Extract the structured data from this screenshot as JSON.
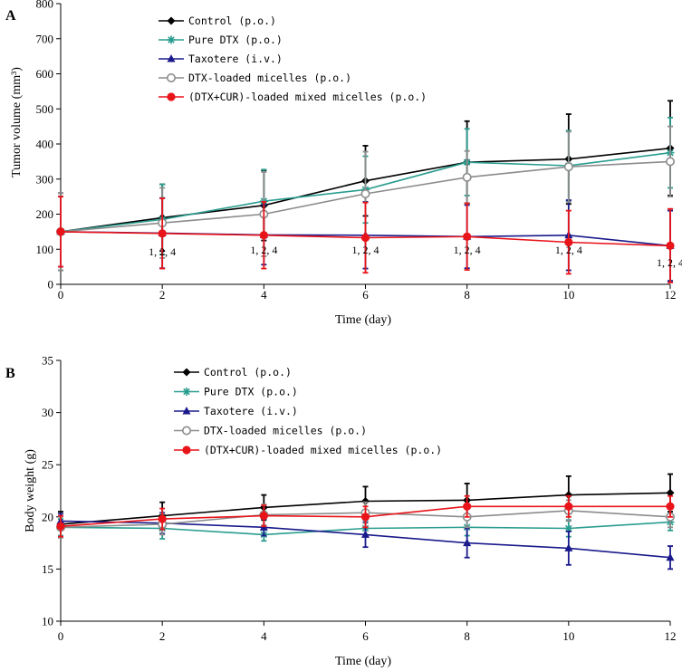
{
  "chart_data": [
    {
      "type": "line",
      "panel_label": "A",
      "xlabel": "Time (day)",
      "ylabel": "Tumor volume (mm³)",
      "xlim": [
        0,
        12
      ],
      "ylim": [
        0,
        800
      ],
      "xticks": [
        0,
        2,
        4,
        6,
        8,
        10,
        12
      ],
      "yticks": [
        0,
        100,
        200,
        300,
        400,
        500,
        600,
        700,
        800
      ],
      "legend_position": "top-center",
      "x": [
        0,
        2,
        4,
        6,
        8,
        10,
        12
      ],
      "series": [
        {
          "name": "Control (p.o.)",
          "color": "#000000",
          "marker": "diamond",
          "values": [
            150,
            190,
            225,
            295,
            348,
            357,
            388
          ],
          "errors": [
            110,
            95,
            100,
            100,
            117,
            128,
            135
          ]
        },
        {
          "name": "Pure DTX (p.o.)",
          "color": "#2a9d8f",
          "marker": "asterisk",
          "values": [
            150,
            185,
            237,
            270,
            348,
            338,
            375
          ],
          "errors": [
            100,
            100,
            90,
            95,
            95,
            100,
            100
          ]
        },
        {
          "name": "Taxotere (i.v.)",
          "color": "#1a1a8c",
          "marker": "triangle",
          "values": [
            150,
            146,
            141,
            140,
            136,
            140,
            110
          ],
          "errors": [
            100,
            100,
            85,
            95,
            90,
            100,
            100
          ]
        },
        {
          "name": "DTX-loaded micelles (p.o.)",
          "color": "#8c8c8c",
          "marker": "open-circle",
          "values": [
            150,
            175,
            200,
            258,
            305,
            335,
            350
          ],
          "errors": [
            110,
            100,
            120,
            120,
            75,
            100,
            100
          ]
        },
        {
          "name": "(DTX+CUR)-loaded mixed micelles (p.o.)",
          "color": "#e8141a",
          "marker": "filled-circle",
          "values": [
            150,
            145,
            140,
            133,
            136,
            120,
            110
          ],
          "errors": [
            100,
            100,
            95,
            100,
            95,
            90,
            105
          ]
        }
      ],
      "annotations": [
        {
          "x": 2,
          "y": 83,
          "text": "1, 2, 4"
        },
        {
          "x": 4,
          "y": 88,
          "text": "1, 2, 4"
        },
        {
          "x": 6,
          "y": 88,
          "text": "1, 2, 4"
        },
        {
          "x": 8,
          "y": 88,
          "text": "1, 2, 4"
        },
        {
          "x": 10,
          "y": 88,
          "text": "1, 2, 4"
        },
        {
          "x": 12,
          "y": 52,
          "text": "1, 2, 4"
        }
      ]
    },
    {
      "type": "line",
      "panel_label": "B",
      "xlabel": "Time  (day)",
      "ylabel": "Body weight (g)",
      "xlim": [
        0,
        12
      ],
      "ylim": [
        10,
        35
      ],
      "xticks": [
        0,
        2,
        4,
        6,
        8,
        10,
        12
      ],
      "yticks": [
        10,
        15,
        20,
        25,
        30,
        35
      ],
      "legend_position": "top-center",
      "x": [
        0,
        2,
        4,
        6,
        8,
        10,
        12
      ],
      "series": [
        {
          "name": "Control (p.o.)",
          "color": "#000000",
          "marker": "diamond",
          "values": [
            19.3,
            20.1,
            20.9,
            21.5,
            21.6,
            22.1,
            22.3
          ],
          "errors": [
            1.2,
            1.3,
            1.2,
            1.4,
            1.6,
            1.8,
            1.8
          ]
        },
        {
          "name": "Pure DTX (p.o.)",
          "color": "#2a9d8f",
          "marker": "asterisk",
          "values": [
            19.0,
            18.9,
            18.3,
            18.9,
            19.0,
            18.9,
            19.5
          ],
          "errors": [
            0.8,
            1.0,
            0.6,
            0.8,
            0.8,
            0.8,
            0.8
          ]
        },
        {
          "name": "Taxotere (i.v.)",
          "color": "#1a1a8c",
          "marker": "triangle",
          "values": [
            19.6,
            19.4,
            19.0,
            18.3,
            17.5,
            17.0,
            16.1
          ],
          "errors": [
            0.7,
            1.0,
            0.8,
            1.2,
            1.4,
            1.6,
            1.1
          ]
        },
        {
          "name": "DTX-loaded micelles (p.o.)",
          "color": "#8c8c8c",
          "marker": "open-circle",
          "values": [
            19.0,
            19.3,
            20.2,
            20.4,
            20.0,
            20.6,
            20.0
          ],
          "errors": [
            1.0,
            1.0,
            1.0,
            1.0,
            1.0,
            1.0,
            1.0
          ]
        },
        {
          "name": "(DTX+CUR)-loaded mixed micelles (p.o.)",
          "color": "#e8141a",
          "marker": "filled-circle",
          "values": [
            19.1,
            19.8,
            20.1,
            20.0,
            21.0,
            21.0,
            21.0
          ],
          "errors": [
            1.0,
            1.0,
            1.0,
            1.0,
            1.0,
            1.0,
            1.0
          ]
        }
      ]
    }
  ]
}
